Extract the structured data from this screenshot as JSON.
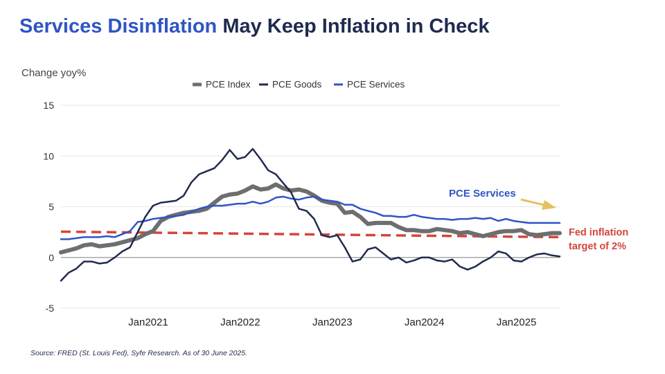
{
  "title": {
    "accent": "Services Disinflation",
    "rest": " May Keep Inflation in Check"
  },
  "source": "Source: FRED (St. Louis Fed), Syfe Research. As of 30 June 2025.",
  "colors": {
    "pce_index": "#6e6e6e",
    "pce_goods": "#1f2a4f",
    "pce_services": "#2f54c6",
    "fed_target": "#d6443a",
    "arrow": "#e3c15e",
    "axis_zero": "#999999",
    "grid": "#e6e6e6",
    "title_dark": "#1f2a4f",
    "title_accent": "#2f54c6"
  },
  "chart_data": {
    "type": "line",
    "ylabel": "Change yoy%",
    "y_ticks": [
      15,
      10,
      5,
      0,
      -5
    ],
    "y_tick_labels": [
      "15",
      "10",
      "5",
      "0",
      "-5"
    ],
    "ylim": [
      -5,
      15
    ],
    "x_tick_labels": [
      "Jan2021",
      "Jan2022",
      "Jan2023",
      "Jan2024",
      "Jan2025"
    ],
    "x_tick_positions": [
      "2021-01",
      "2022-01",
      "2023-01",
      "2024-01",
      "2025-01"
    ],
    "x_start": "2020-01",
    "x_end": "2025-06",
    "grid": true,
    "legend_position": "top-center",
    "series": [
      {
        "name": "PCE Index",
        "key": "pce_index",
        "x": [
          "2020-01",
          "2020-02",
          "2020-03",
          "2020-04",
          "2020-05",
          "2020-06",
          "2020-07",
          "2020-08",
          "2020-09",
          "2020-10",
          "2020-11",
          "2020-12",
          "2021-01",
          "2021-02",
          "2021-03",
          "2021-04",
          "2021-05",
          "2021-06",
          "2021-07",
          "2021-08",
          "2021-09",
          "2021-10",
          "2021-11",
          "2021-12",
          "2022-01",
          "2022-02",
          "2022-03",
          "2022-04",
          "2022-05",
          "2022-06",
          "2022-07",
          "2022-08",
          "2022-09",
          "2022-10",
          "2022-11",
          "2022-12",
          "2023-01",
          "2023-02",
          "2023-03",
          "2023-04",
          "2023-05",
          "2023-06",
          "2023-07",
          "2023-08",
          "2023-09",
          "2023-10",
          "2023-11",
          "2023-12",
          "2024-01",
          "2024-02",
          "2024-03",
          "2024-04",
          "2024-05",
          "2024-06",
          "2024-07",
          "2024-08",
          "2024-09",
          "2024-10",
          "2024-11",
          "2024-12",
          "2025-01",
          "2025-02",
          "2025-03",
          "2025-04",
          "2025-05",
          "2025-06"
        ],
        "values": [
          0.5,
          0.7,
          0.9,
          1.2,
          1.3,
          1.1,
          1.2,
          1.3,
          1.5,
          1.7,
          1.9,
          2.3,
          2.6,
          3.6,
          4.0,
          4.2,
          4.4,
          4.5,
          4.6,
          4.8,
          5.4,
          6.0,
          6.2,
          6.3,
          6.6,
          7.0,
          6.7,
          6.8,
          7.2,
          6.8,
          6.6,
          6.7,
          6.5,
          6.1,
          5.6,
          5.4,
          5.3,
          4.4,
          4.5,
          4.0,
          3.3,
          3.4,
          3.4,
          3.4,
          3.0,
          2.7,
          2.7,
          2.6,
          2.6,
          2.8,
          2.7,
          2.6,
          2.4,
          2.5,
          2.3,
          2.1,
          2.3,
          2.5,
          2.6,
          2.6,
          2.7,
          2.3,
          2.2,
          2.3,
          2.4,
          2.4
        ]
      },
      {
        "name": "PCE Goods",
        "key": "pce_goods",
        "x": [
          "2020-01",
          "2020-02",
          "2020-03",
          "2020-04",
          "2020-05",
          "2020-06",
          "2020-07",
          "2020-08",
          "2020-09",
          "2020-10",
          "2020-11",
          "2020-12",
          "2021-01",
          "2021-02",
          "2021-03",
          "2021-04",
          "2021-05",
          "2021-06",
          "2021-07",
          "2021-08",
          "2021-09",
          "2021-10",
          "2021-11",
          "2021-12",
          "2022-01",
          "2022-02",
          "2022-03",
          "2022-04",
          "2022-05",
          "2022-06",
          "2022-07",
          "2022-08",
          "2022-09",
          "2022-10",
          "2022-11",
          "2022-12",
          "2023-01",
          "2023-02",
          "2023-03",
          "2023-04",
          "2023-05",
          "2023-06",
          "2023-07",
          "2023-08",
          "2023-09",
          "2023-10",
          "2023-11",
          "2023-12",
          "2024-01",
          "2024-02",
          "2024-03",
          "2024-04",
          "2024-05",
          "2024-06",
          "2024-07",
          "2024-08",
          "2024-09",
          "2024-10",
          "2024-11",
          "2024-12",
          "2025-01",
          "2025-02",
          "2025-03",
          "2025-04",
          "2025-05",
          "2025-06"
        ],
        "values": [
          -2.3,
          -1.5,
          -1.1,
          -0.4,
          -0.4,
          -0.6,
          -0.5,
          0.0,
          0.6,
          1.0,
          2.5,
          4.0,
          5.1,
          5.4,
          5.5,
          5.6,
          6.1,
          7.4,
          8.2,
          8.5,
          8.8,
          9.6,
          10.6,
          9.7,
          9.9,
          10.7,
          9.7,
          8.6,
          8.2,
          7.3,
          6.4,
          4.8,
          4.6,
          3.8,
          2.2,
          2.0,
          2.2,
          1.0,
          -0.4,
          -0.2,
          0.8,
          1.0,
          0.4,
          -0.2,
          0.0,
          -0.5,
          -0.3,
          0.0,
          0.0,
          -0.3,
          -0.4,
          -0.2,
          -0.9,
          -1.2,
          -0.9,
          -0.4,
          0.0,
          0.6,
          0.4,
          -0.3,
          -0.4,
          0.0,
          0.3,
          0.4,
          0.2,
          0.1
        ]
      },
      {
        "name": "PCE Services",
        "key": "pce_services",
        "x": [
          "2020-01",
          "2020-02",
          "2020-03",
          "2020-04",
          "2020-05",
          "2020-06",
          "2020-07",
          "2020-08",
          "2020-09",
          "2020-10",
          "2020-11",
          "2020-12",
          "2021-01",
          "2021-02",
          "2021-03",
          "2021-04",
          "2021-05",
          "2021-06",
          "2021-07",
          "2021-08",
          "2021-09",
          "2021-10",
          "2021-11",
          "2021-12",
          "2022-01",
          "2022-02",
          "2022-03",
          "2022-04",
          "2022-05",
          "2022-06",
          "2022-07",
          "2022-08",
          "2022-09",
          "2022-10",
          "2022-11",
          "2022-12",
          "2023-01",
          "2023-02",
          "2023-03",
          "2023-04",
          "2023-05",
          "2023-06",
          "2023-07",
          "2023-08",
          "2023-09",
          "2023-10",
          "2023-11",
          "2023-12",
          "2024-01",
          "2024-02",
          "2024-03",
          "2024-04",
          "2024-05",
          "2024-06",
          "2024-07",
          "2024-08",
          "2024-09",
          "2024-10",
          "2024-11",
          "2024-12",
          "2025-01",
          "2025-02",
          "2025-03",
          "2025-04",
          "2025-05",
          "2025-06"
        ],
        "values": [
          1.8,
          1.8,
          1.9,
          2.0,
          2.0,
          2.0,
          2.1,
          2.0,
          2.3,
          2.6,
          3.5,
          3.6,
          3.8,
          3.9,
          4.0,
          4.1,
          4.2,
          4.5,
          4.8,
          5.0,
          5.1,
          5.1,
          5.2,
          5.3,
          5.3,
          5.5,
          5.3,
          5.5,
          5.9,
          6.0,
          5.8,
          5.7,
          5.9,
          6.0,
          5.7,
          5.6,
          5.5,
          5.2,
          5.2,
          4.8,
          4.6,
          4.4,
          4.1,
          4.1,
          4.0,
          4.0,
          4.2,
          4.0,
          3.9,
          3.8,
          3.8,
          3.7,
          3.8,
          3.8,
          3.9,
          3.8,
          3.9,
          3.6,
          3.8,
          3.6,
          3.5,
          3.4,
          3.4,
          3.4,
          3.4,
          3.4
        ]
      }
    ],
    "reference_line": {
      "name": "Fed inflation target of 2%",
      "value": 2.0
    },
    "annotations": {
      "services_label": "PCE Services",
      "fed_label_line1": "Fed inflation",
      "fed_label_line2": "target of 2%"
    }
  }
}
